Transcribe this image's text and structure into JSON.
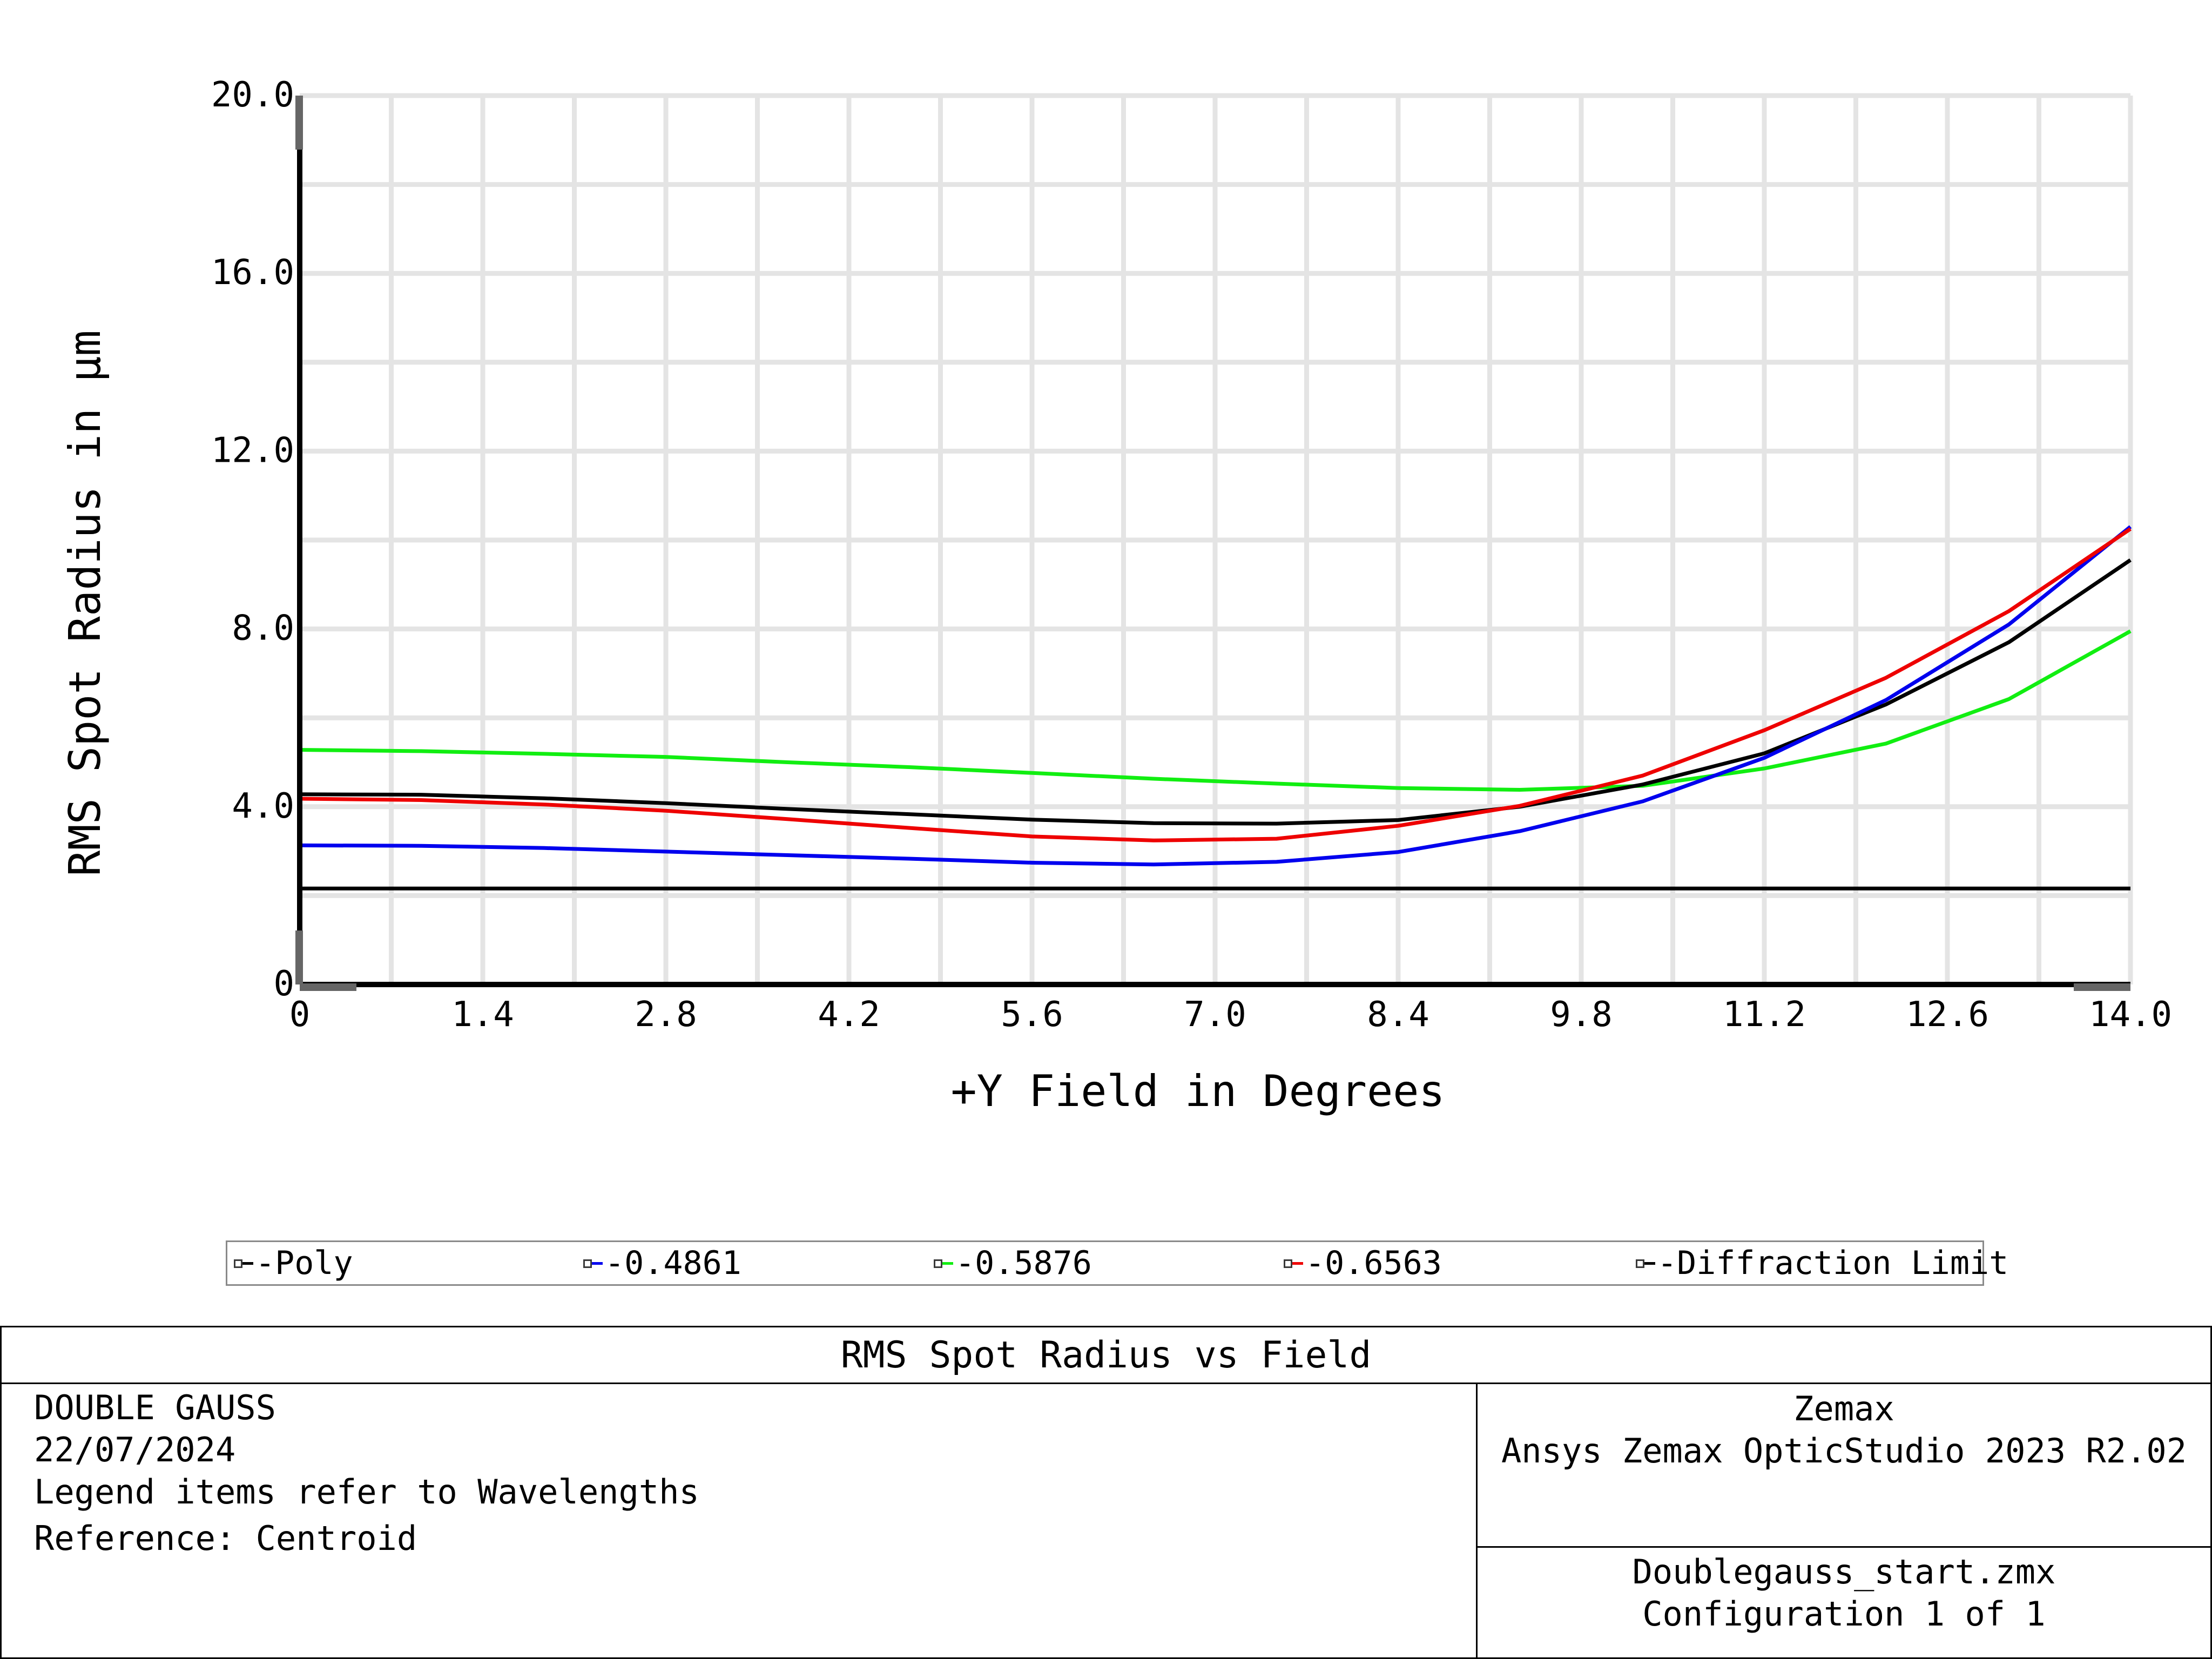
{
  "chart_data": {
    "type": "line",
    "title": "RMS Spot Radius vs Field",
    "xlabel": "+Y Field in Degrees",
    "ylabel": "RMS Spot Radius in µm",
    "xlim": [
      0,
      14.0
    ],
    "ylim": [
      0,
      20.0
    ],
    "xticks": [
      "0",
      "1.4",
      "2.8",
      "4.2",
      "5.6",
      "7.0",
      "8.4",
      "9.8",
      "11.2",
      "12.6",
      "14.0"
    ],
    "yticks": [
      "0",
      "4.0",
      "8.0",
      "12.0",
      "16.0",
      "20.0"
    ],
    "grid": true,
    "legend_position": "bottom",
    "x": [
      0,
      0.93,
      1.87,
      2.8,
      3.73,
      4.67,
      5.6,
      6.53,
      7.47,
      8.4,
      9.33,
      10.27,
      11.2,
      12.13,
      13.07,
      14.0
    ],
    "series": [
      {
        "name": "Poly",
        "color": "#000000",
        "values": [
          4.28,
          4.27,
          4.19,
          4.08,
          3.95,
          3.83,
          3.71,
          3.63,
          3.62,
          3.7,
          4.0,
          4.5,
          5.2,
          6.3,
          7.7,
          9.55
        ]
      },
      {
        "name": "0.4861",
        "color": "#0000ee",
        "values": [
          3.13,
          3.12,
          3.07,
          2.99,
          2.91,
          2.83,
          2.74,
          2.7,
          2.76,
          2.98,
          3.45,
          4.12,
          5.1,
          6.4,
          8.1,
          10.3
        ]
      },
      {
        "name": "0.5876",
        "color": "#11ee11",
        "values": [
          5.28,
          5.25,
          5.19,
          5.12,
          5.0,
          4.89,
          4.76,
          4.63,
          4.52,
          4.42,
          4.38,
          4.47,
          4.86,
          5.42,
          6.42,
          7.95
        ]
      },
      {
        "name": "0.6563",
        "color": "#ee0000",
        "values": [
          4.18,
          4.15,
          4.05,
          3.91,
          3.72,
          3.52,
          3.33,
          3.24,
          3.28,
          3.57,
          4.02,
          4.7,
          5.72,
          6.9,
          8.4,
          10.25
        ]
      },
      {
        "name": "Diffraction Limit",
        "color": "#000000",
        "values": [
          2.16,
          2.16,
          2.16,
          2.16,
          2.16,
          2.16,
          2.16,
          2.16,
          2.16,
          2.16,
          2.16,
          2.16,
          2.16,
          2.16,
          2.16,
          2.16
        ]
      }
    ]
  },
  "legend": {
    "items": [
      {
        "label": "-Poly",
        "color": "#000000"
      },
      {
        "label": "-0.4861",
        "color": "#0000ee"
      },
      {
        "label": "-0.5876",
        "color": "#11ee11"
      },
      {
        "label": "-0.6563",
        "color": "#ee0000"
      },
      {
        "label": "-Diffraction Limit",
        "color": "#000000"
      }
    ]
  },
  "info": {
    "title": "RMS Spot Radius vs Field",
    "lens_name": "DOUBLE GAUSS",
    "date": "22/07/2024",
    "note": "Legend items refer to Wavelengths",
    "reference": "Reference: Centroid",
    "company": "Zemax",
    "software": "Ansys Zemax OpticStudio 2023 R2.02",
    "file": "Doublegauss_start.zmx",
    "configuration": "Configuration 1 of 1"
  }
}
